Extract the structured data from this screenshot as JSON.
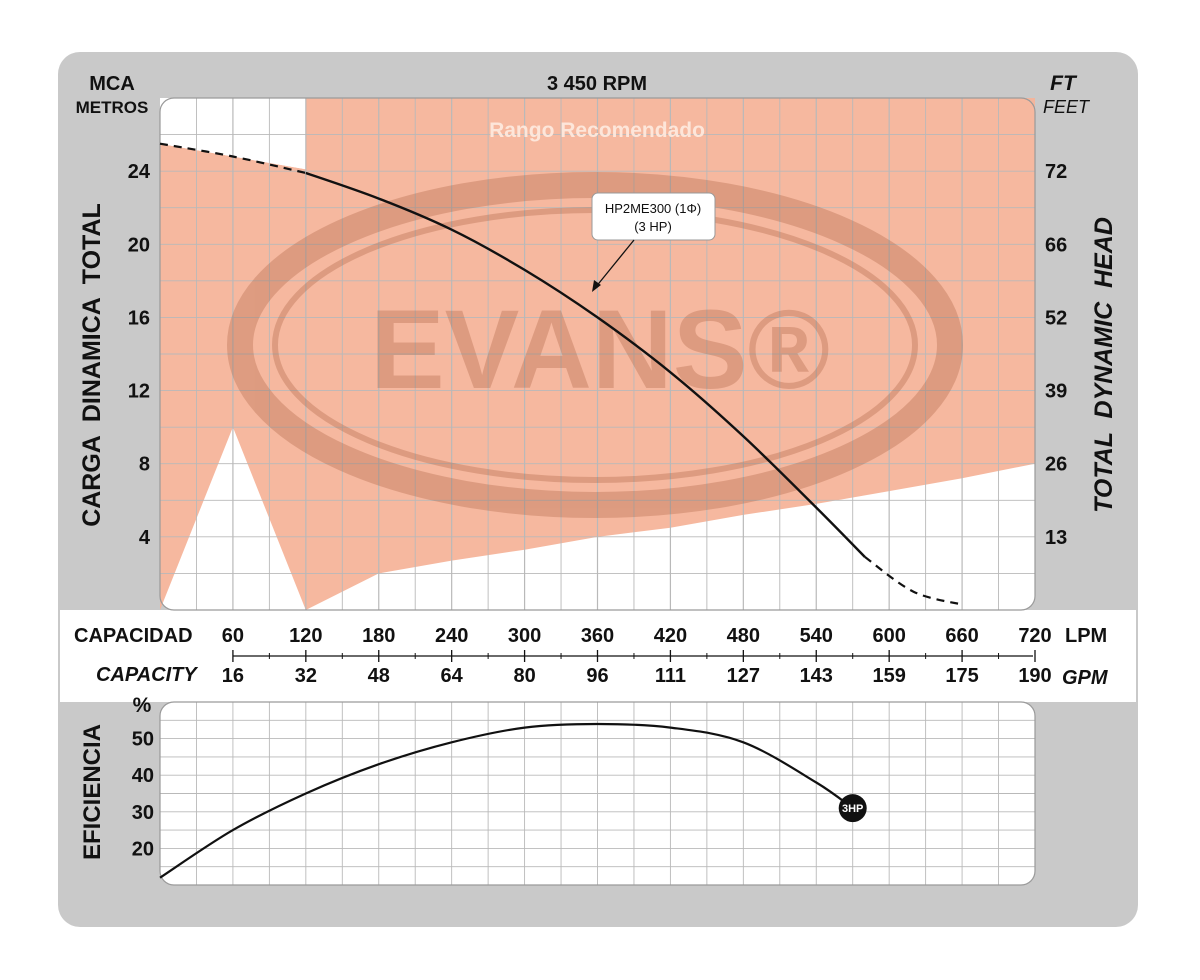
{
  "chart_data": [
    {
      "type": "line",
      "title": "3 450 RPM",
      "left_axis": {
        "unit_top": "MCA",
        "unit_bottom": "METROS",
        "label": "CARGA  DINAMICA  TOTAL",
        "ticks": [
          4,
          8,
          12,
          16,
          20,
          24
        ],
        "range": [
          0,
          28
        ]
      },
      "right_axis": {
        "unit_top": "FT",
        "unit_bottom": "FEET",
        "label": "TOTAL  DYNAMIC  HEAD",
        "ticks": [
          "13",
          "26",
          "39",
          "52",
          "66",
          "72"
        ]
      },
      "x_axis_lpm": {
        "label": "CAPACIDAD",
        "unit": "LPM",
        "ticks": [
          60,
          120,
          180,
          240,
          300,
          360,
          420,
          480,
          540,
          600,
          660,
          720
        ],
        "range": [
          0,
          720
        ]
      },
      "x_axis_gpm": {
        "label": "CAPACITY",
        "unit": "GPM",
        "ticks": [
          "16",
          "32",
          "48",
          "64",
          "80",
          "96",
          "111",
          "127",
          "143",
          "159",
          "175",
          "190"
        ]
      },
      "recommended_range": {
        "label": "Rango Recomendado",
        "x": [
          120,
          720
        ],
        "lower_bound": {
          "x": [
            0,
            60,
            120,
            180,
            240,
            300,
            360,
            420,
            480,
            540,
            600,
            660,
            720
          ],
          "y": [
            0,
            10,
            0,
            2,
            2.7,
            3.3,
            4,
            4.5,
            5.2,
            5.8,
            6.5,
            7.2,
            8
          ]
        },
        "outside_region": {
          "x": [
            0,
            60,
            120
          ],
          "y_lower": [
            0,
            10,
            0
          ]
        }
      },
      "series": [
        {
          "name": "HP2ME300 (1Φ)",
          "subtitle": "(3 HP)",
          "x": [
            0,
            60,
            120,
            180,
            240,
            300,
            360,
            420,
            480,
            540,
            580,
            620,
            660
          ],
          "y": [
            25.5,
            24.8,
            23.9,
            22.5,
            20.8,
            18.6,
            16,
            13,
            9.5,
            5.6,
            2.9,
            1.0,
            0.3
          ],
          "dashed_below_x": 120,
          "dashed_above_x": 580
        }
      ],
      "grid": true,
      "watermark": "EVANS®"
    },
    {
      "type": "line",
      "y_axis": {
        "label": "EFICIENCIA",
        "unit": "%",
        "ticks": [
          20,
          30,
          40,
          50
        ],
        "range": [
          10,
          60
        ]
      },
      "series": [
        {
          "name": "3HP",
          "x": [
            0,
            60,
            120,
            180,
            240,
            300,
            360,
            420,
            480,
            540,
            570
          ],
          "y": [
            12,
            25,
            35,
            43,
            49,
            53,
            54,
            53,
            49,
            38,
            31
          ]
        }
      ],
      "end_marker_label": "3HP",
      "grid": true
    }
  ]
}
